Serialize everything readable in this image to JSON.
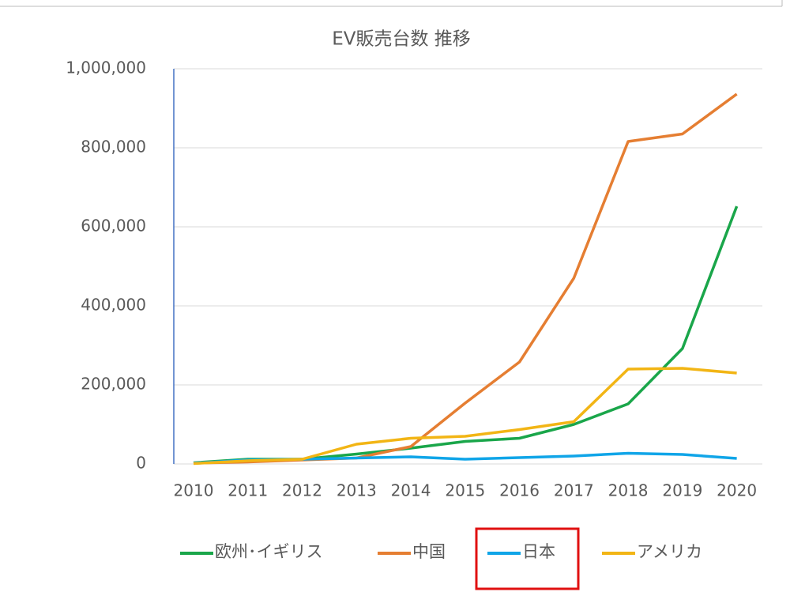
{
  "chart_data": {
    "type": "line",
    "title": "EV販売台数 推移",
    "categories": [
      "2010",
      "2011",
      "2012",
      "2013",
      "2014",
      "2015",
      "2016",
      "2017",
      "2018",
      "2019",
      "2020"
    ],
    "series": [
      {
        "name": "欧州･イギリス",
        "color": "#1aa64a",
        "values": [
          3000,
          12000,
          12000,
          25000,
          40000,
          57000,
          65000,
          100000,
          152000,
          292000,
          652000
        ]
      },
      {
        "name": "中国",
        "color": "#e57e32",
        "values": [
          2000,
          5000,
          10000,
          15000,
          44000,
          154000,
          258000,
          470000,
          816000,
          835000,
          936000
        ]
      },
      {
        "name": "日本",
        "color": "#10a5e8",
        "values": [
          2000,
          10000,
          12000,
          15000,
          18000,
          12000,
          16000,
          20000,
          27000,
          24000,
          14000
        ]
      },
      {
        "name": "アメリカ",
        "color": "#f2b515",
        "values": [
          1000,
          8000,
          12000,
          50000,
          65000,
          70000,
          87000,
          107000,
          240000,
          242000,
          230000
        ]
      }
    ],
    "ylim": [
      0,
      1000000
    ],
    "yticks": [
      0,
      {
        "value": 200000,
        "label": "200,000"
      },
      {
        "value": 400000,
        "label": "400,000"
      },
      {
        "value": 600000,
        "label": "600,000"
      },
      {
        "value": 800000,
        "label": "800,000"
      },
      {
        "value": 1000000,
        "label": "1,000,000"
      }
    ],
    "grid": true,
    "legend": "bottom"
  }
}
